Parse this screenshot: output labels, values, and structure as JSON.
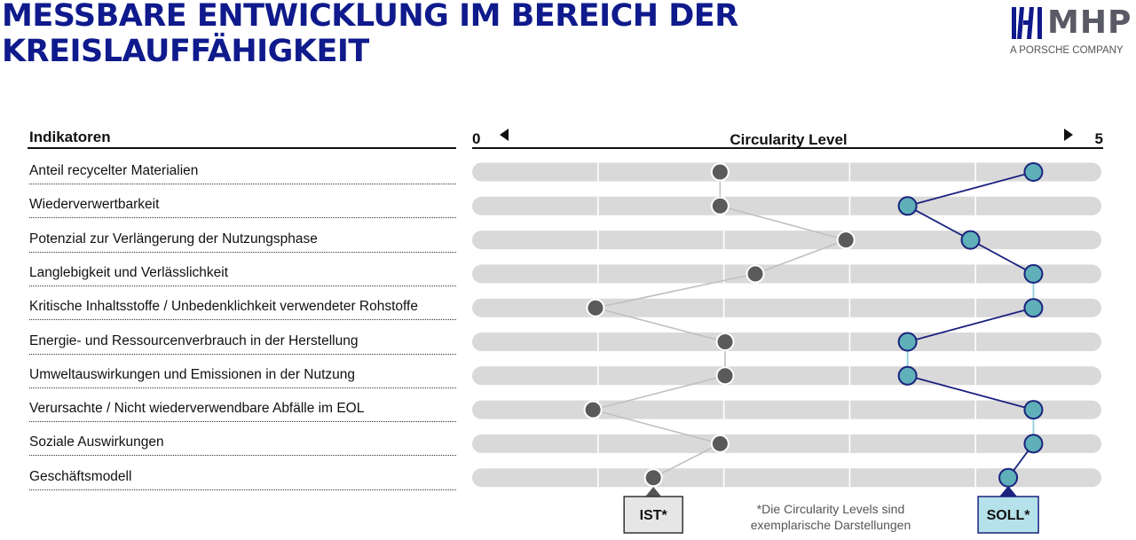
{
  "title_lines": [
    "MESSBARE ENTWICKLUNG IM BEREICH DER",
    "KREISLAUFFÄHIGKEIT"
  ],
  "logo": {
    "text": "MHP",
    "subtitle": "A PORSCHE COMPANY"
  },
  "indicators_header": "Indikatoren",
  "colors": {
    "title": "#0f1a8c",
    "ist_line": "#c0c0c0",
    "ist_dot": "#5a5a5a",
    "soll_line": "#1a237e",
    "soll_dot": "#5fb0b8",
    "track": "#d9d9d9"
  },
  "chart_data": {
    "type": "dot-comparison",
    "axis_label": "Circularity Level",
    "axis_min_label": "0",
    "axis_max_label": "5",
    "xlim": [
      0,
      5
    ],
    "categories": [
      "Anteil recycelter Materialien",
      "Wiederverwertbarkeit",
      "Potenzial zur Verlängerung der Nutzungsphase",
      "Langlebigkeit und Verlässlichkeit",
      "Kritische Inhaltsstoffe / Unbedenklichkeit verwendeter Rohstoffe",
      "Energie- und Ressourcenverbrauch in der Herstellung",
      "Umweltauswirkungen und Emissionen in der Nutzung",
      "Verursachte / Nicht wiederverwendbare Abfälle im EOL",
      "Soziale Auswirkungen",
      "Geschäftsmodell"
    ],
    "series": [
      {
        "name": "IST*",
        "values": [
          1.97,
          1.97,
          2.97,
          2.25,
          0.98,
          2.01,
          2.01,
          0.96,
          1.97,
          1.44
        ]
      },
      {
        "name": "SOLL*",
        "values": [
          4.46,
          3.46,
          3.96,
          4.46,
          4.46,
          3.46,
          3.46,
          4.46,
          4.46,
          4.26
        ]
      }
    ]
  },
  "note_lines": [
    "*Die Circularity Levels sind",
    "exemplarische Darstellungen"
  ]
}
